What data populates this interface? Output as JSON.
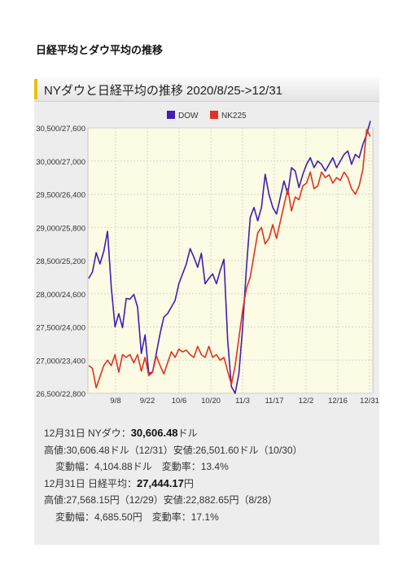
{
  "page_heading": "日経平均とダウ平均の推移",
  "card_title": "NYダウと日経平均の推移 2020/8/25->12/31",
  "colors": {
    "dow": "#3f1fb4",
    "nk": "#e03224",
    "plot_bg": "#fcfbe3",
    "accent": "#e8c000"
  },
  "chart_data": {
    "type": "line",
    "title": "NYダウと日経平均の推移 2020/8/25->12/31",
    "x_tick_labels": [
      "9/8",
      "9/22",
      "10/6",
      "10/20",
      "11/3",
      "11/17",
      "12/2",
      "12/16",
      "12/31"
    ],
    "y_tick_labels": [
      "26,500/22,800",
      "27,000/23,400",
      "27,500/24,000",
      "28,000/24,600",
      "28,500/25,200",
      "29,000/25,800",
      "29,500/26,400",
      "30,000/27,000",
      "30,500/27,600"
    ],
    "ylim_dow": [
      26500,
      30500
    ],
    "ylim_nk225": [
      22800,
      27600
    ],
    "grid": true,
    "legend_position": "top",
    "series": [
      {
        "name": "DOW",
        "axis": "dow",
        "values": [
          28230,
          28330,
          28620,
          28450,
          28640,
          28940,
          28100,
          27500,
          27700,
          27490,
          27930,
          27920,
          27990,
          27800,
          27100,
          27380,
          26800,
          26820,
          27100,
          27400,
          27650,
          27700,
          27800,
          27900,
          28150,
          28300,
          28450,
          28680,
          28550,
          28400,
          28610,
          28150,
          28230,
          28300,
          28150,
          28350,
          28520,
          27300,
          26600,
          26500,
          26800,
          27500,
          28400,
          29150,
          29300,
          29100,
          29300,
          29800,
          29500,
          29300,
          29200,
          29450,
          29700,
          29500,
          29900,
          29850,
          29600,
          29800,
          29950,
          30050,
          29900,
          30000,
          29950,
          29850,
          29950,
          30050,
          29900,
          30000,
          30100,
          30150,
          29950,
          30100,
          30050,
          30250,
          30400,
          30606
        ]
      },
      {
        "name": "NK225",
        "axis": "nk225",
        "values": [
          23300,
          23250,
          22900,
          23100,
          23300,
          23400,
          23300,
          23500,
          23180,
          23500,
          23450,
          23500,
          23350,
          23500,
          23200,
          23450,
          23120,
          23180,
          23480,
          23300,
          23150,
          23350,
          23550,
          23450,
          23600,
          23550,
          23580,
          23500,
          23450,
          23650,
          23500,
          23450,
          23650,
          23450,
          23500,
          23400,
          23450,
          23200,
          22960,
          23300,
          23800,
          24300,
          24700,
          24900,
          25300,
          25700,
          25800,
          25500,
          25600,
          25850,
          25600,
          25900,
          26200,
          26500,
          26100,
          26350,
          26300,
          26550,
          26600,
          26800,
          26500,
          26550,
          26800,
          26700,
          26750,
          26600,
          26700,
          26650,
          26800,
          26700,
          26500,
          26400,
          26550,
          26850,
          27568,
          27444
        ]
      }
    ]
  },
  "stats": {
    "dow_close_label": "12月31日 NYダウ：",
    "dow_close_value": "30,606.48",
    "dow_close_unit": "ドル",
    "dow_high_low": "高値:30,606.48ドル（12/31）安値:26,501.60ドル（10/30）",
    "dow_change": "変動幅：4,104.88ドル　変動率：13.4%",
    "nk_close_label": "12月31日 日経平均：",
    "nk_close_value": "27,444.17",
    "nk_close_unit": "円",
    "nk_high_low": "高値:27,568.15円（12/29）安値:22,882.65円（8/28）",
    "nk_change": "変動幅：4,685.50円　変動率：17.1%"
  }
}
